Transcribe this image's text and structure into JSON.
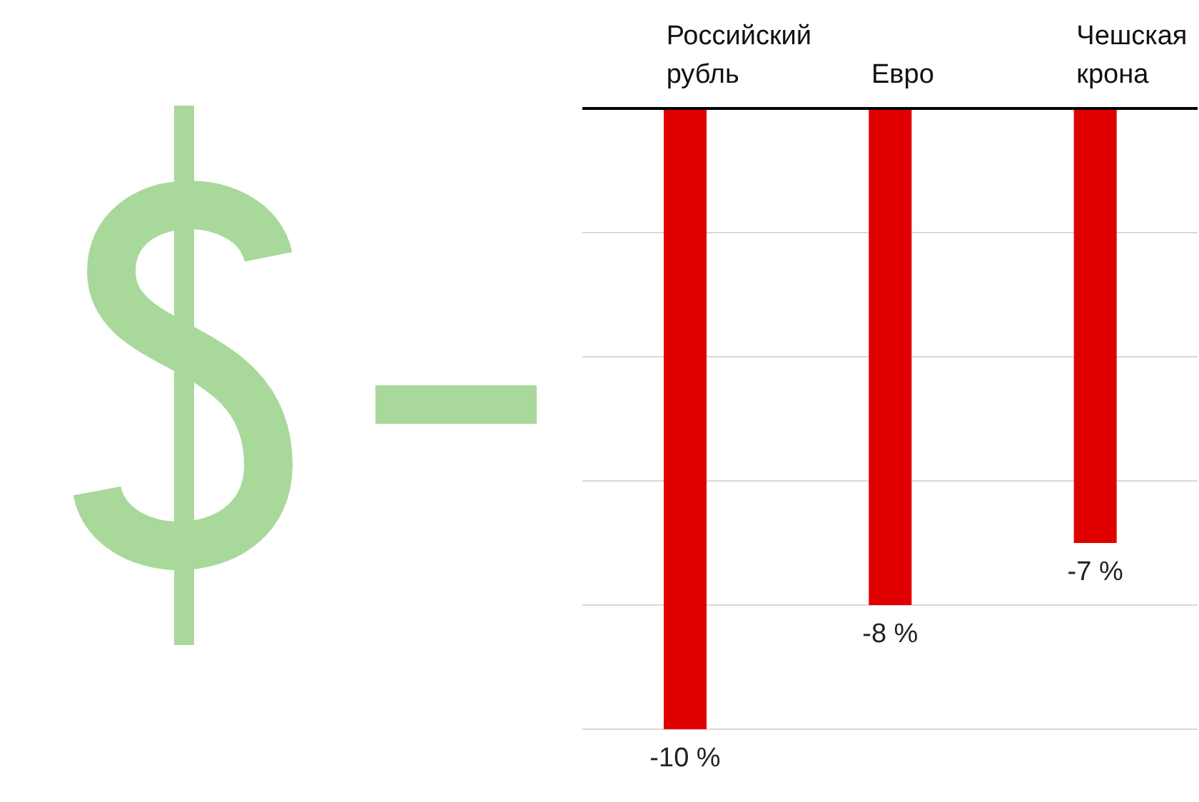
{
  "chart_data": {
    "type": "bar",
    "categories": [
      "Российский рубль",
      "Евро",
      "Чешская крона"
    ],
    "values": [
      -10,
      -8,
      -7
    ],
    "value_labels": [
      "-10 %",
      "-8 %",
      "-7 %"
    ],
    "color": "#e00000",
    "grid": "y",
    "tick_labels": "x"
  }
}
